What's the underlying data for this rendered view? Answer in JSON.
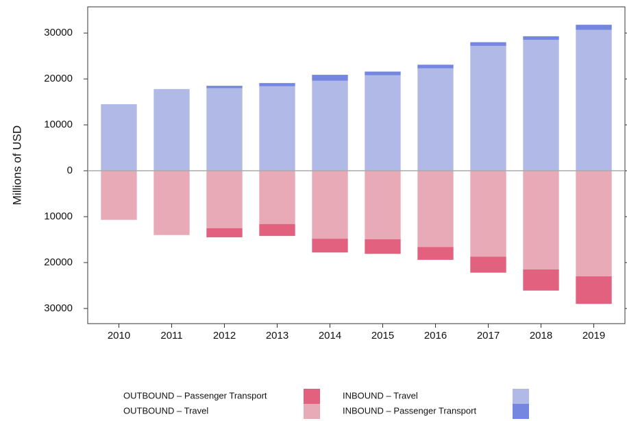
{
  "chart_data": {
    "type": "bar",
    "stacked": true,
    "y_label": "Millions of USD",
    "categories": [
      "2010",
      "2011",
      "2012",
      "2013",
      "2014",
      "2015",
      "2016",
      "2017",
      "2018",
      "2019"
    ],
    "series": [
      {
        "name": "INBOUND – Travel",
        "color": "#b1b9e7",
        "values": [
          14500,
          17800,
          18000,
          18400,
          19600,
          20800,
          22300,
          27200,
          28500,
          30700
        ]
      },
      {
        "name": "INBOUND – Passenger Transport",
        "color": "#7486e0",
        "values": [
          0,
          0,
          500,
          700,
          1300,
          800,
          800,
          800,
          800,
          1100
        ]
      },
      {
        "name": "OUTBOUND – Travel",
        "color": "#e9aab8",
        "values": [
          -10700,
          -14000,
          -12500,
          -11600,
          -14800,
          -14900,
          -16600,
          -18700,
          -21500,
          -23000
        ]
      },
      {
        "name": "OUTBOUND – Passenger Transport",
        "color": "#e1617f",
        "values": [
          0,
          0,
          -2000,
          -2600,
          -3000,
          -3200,
          -2800,
          -3500,
          -4600,
          -6000
        ]
      }
    ],
    "ylim": [
      -33300,
      35700
    ],
    "yticks": [
      {
        "value": -30000,
        "label": "30000"
      },
      {
        "value": -20000,
        "label": "20000"
      },
      {
        "value": -10000,
        "label": "10000"
      },
      0,
      10000,
      20000,
      30000
    ],
    "zero_line": true
  }
}
